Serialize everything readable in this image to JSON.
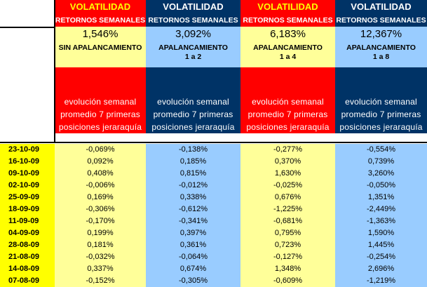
{
  "header": {
    "columns": [
      {
        "title": "VOLATILIDAD",
        "subtitle": "RETORNOS SEMANALES",
        "percent": "1,546%",
        "leverage": "SIN APALANCAMIENTO",
        "evolution": "evolución semanal\npromedio 7 primeras\nposiciones jeraraquía"
      },
      {
        "title": "VOLATILIDAD",
        "subtitle": "RETORNOS SEMANALES",
        "percent": "3,092%",
        "leverage": "APALANCAMIENTO\n1 a 2",
        "evolution": "evolución semanal\npromedio 7 primeras\nposiciones jeraraquía"
      },
      {
        "title": "VOLATILIDAD",
        "subtitle": "RETORNOS SEMANALES",
        "percent": "6,183%",
        "leverage": "APALANCAMIENTO\n1 a 4",
        "evolution": "evolución semanal\npromedio 7 primeras\nposiciones jeraraquía"
      },
      {
        "title": "VOLATILIDAD",
        "subtitle": "RETORNOS SEMANALES",
        "percent": "12,367%",
        "leverage": "APALANCAMIENTO\n1 a 8",
        "evolution": "evolución semanal\npromedio 7 primeras\nposiciones jeraraquía"
      }
    ]
  },
  "rows": [
    {
      "date": "23-10-09",
      "v1": "-0,069%",
      "v2": "-0,138%",
      "v3": "-0,277%",
      "v4": "-0,554%"
    },
    {
      "date": "16-10-09",
      "v1": "0,092%",
      "v2": "0,185%",
      "v3": "0,370%",
      "v4": "0,739%"
    },
    {
      "date": "09-10-09",
      "v1": "0,408%",
      "v2": "0,815%",
      "v3": "1,630%",
      "v4": "3,260%"
    },
    {
      "date": "02-10-09",
      "v1": "-0,006%",
      "v2": "-0,012%",
      "v3": "-0,025%",
      "v4": "-0,050%"
    },
    {
      "date": "25-09-09",
      "v1": "0,169%",
      "v2": "0,338%",
      "v3": "0,676%",
      "v4": "1,351%"
    },
    {
      "date": "18-09-09",
      "v1": "-0,306%",
      "v2": "-0,612%",
      "v3": "-1,225%",
      "v4": "-2,449%"
    },
    {
      "date": "11-09-09",
      "v1": "-0,170%",
      "v2": "-0,341%",
      "v3": "-0,681%",
      "v4": "-1,363%"
    },
    {
      "date": "04-09-09",
      "v1": "0,199%",
      "v2": "0,397%",
      "v3": "0,795%",
      "v4": "1,590%"
    },
    {
      "date": "28-08-09",
      "v1": "0,181%",
      "v2": "0,361%",
      "v3": "0,723%",
      "v4": "1,445%"
    },
    {
      "date": "21-08-09",
      "v1": "-0,032%",
      "v2": "-0,064%",
      "v3": "-0,127%",
      "v4": "-0,254%"
    },
    {
      "date": "14-08-09",
      "v1": "0,337%",
      "v2": "0,674%",
      "v3": "1,348%",
      "v4": "2,696%"
    },
    {
      "date": "07-08-09",
      "v1": "-0,152%",
      "v2": "-0,305%",
      "v3": "-0,609%",
      "v4": "-1,219%"
    }
  ],
  "colors": {
    "red": "#ff0000",
    "pale_yellow": "#ffff99",
    "light_blue": "#99ccff",
    "navy": "#003366",
    "date_yellow": "#ffff00"
  }
}
